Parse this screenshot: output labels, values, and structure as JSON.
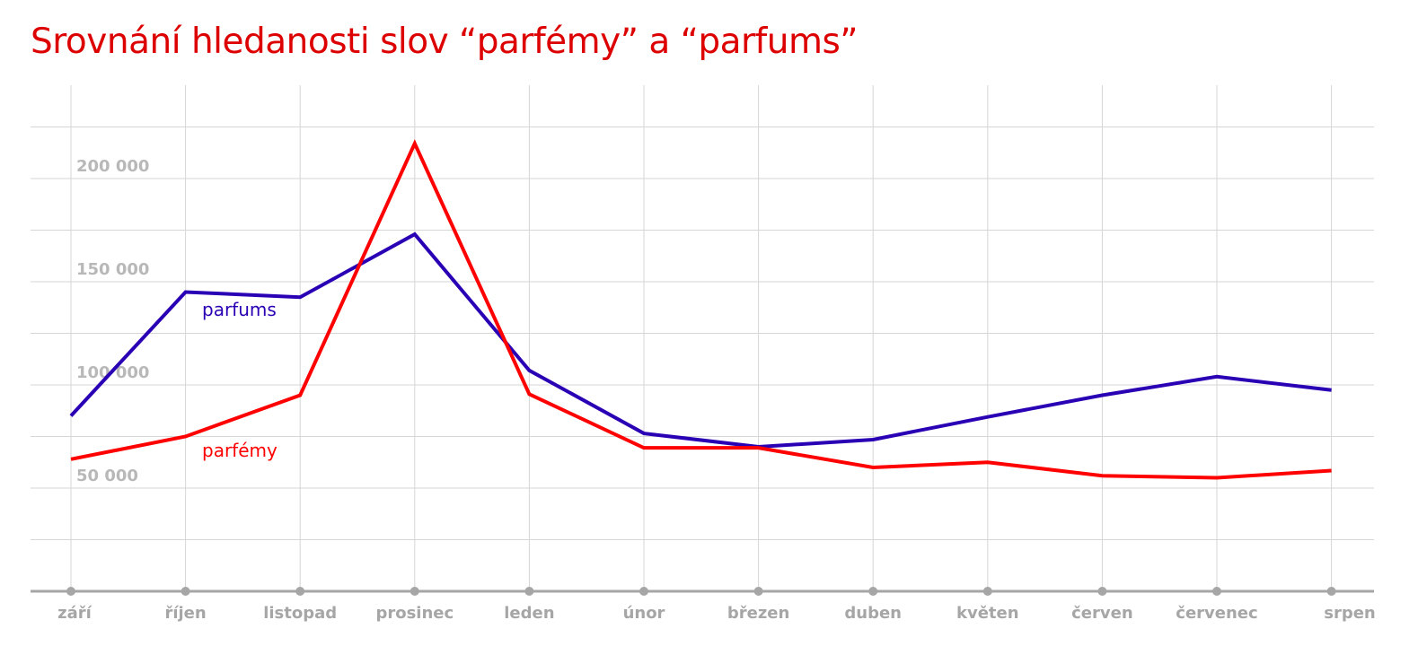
{
  "colors": {
    "title": "#dd0000",
    "grid": "#d6d6d6",
    "axis": "#a6a6a6",
    "ticks": "#b8b8b8"
  },
  "chart_data": {
    "type": "line",
    "title": "Srovnání hledanosti slov “parfémy” a “parfums”",
    "xlabel": "",
    "ylabel": "",
    "categories": [
      "září",
      "říjen",
      "listopad",
      "prosinec",
      "leden",
      "únor",
      "březen",
      "duben",
      "květen",
      "červen",
      "červenec",
      "srpen"
    ],
    "y_ticks": [
      {
        "value": 50000,
        "label": "50 000"
      },
      {
        "value": 100000,
        "label": "100 000"
      },
      {
        "value": 150000,
        "label": "150 000"
      },
      {
        "value": 200000,
        "label": "200 000"
      }
    ],
    "ylim": [
      0,
      225000
    ],
    "grid": true,
    "legend": "inline labels",
    "series": [
      {
        "name": "parfums",
        "color": "#2a00b5",
        "values": [
          85000,
          145000,
          142500,
          173000,
          107000,
          76500,
          70000,
          73500,
          84500,
          95000,
          104000,
          97500
        ]
      },
      {
        "name": "parfémy",
        "color": "#ff0000",
        "values": [
          64000,
          75000,
          95000,
          217000,
          95500,
          69500,
          69500,
          60000,
          62500,
          56000,
          55000,
          58500
        ]
      }
    ]
  }
}
